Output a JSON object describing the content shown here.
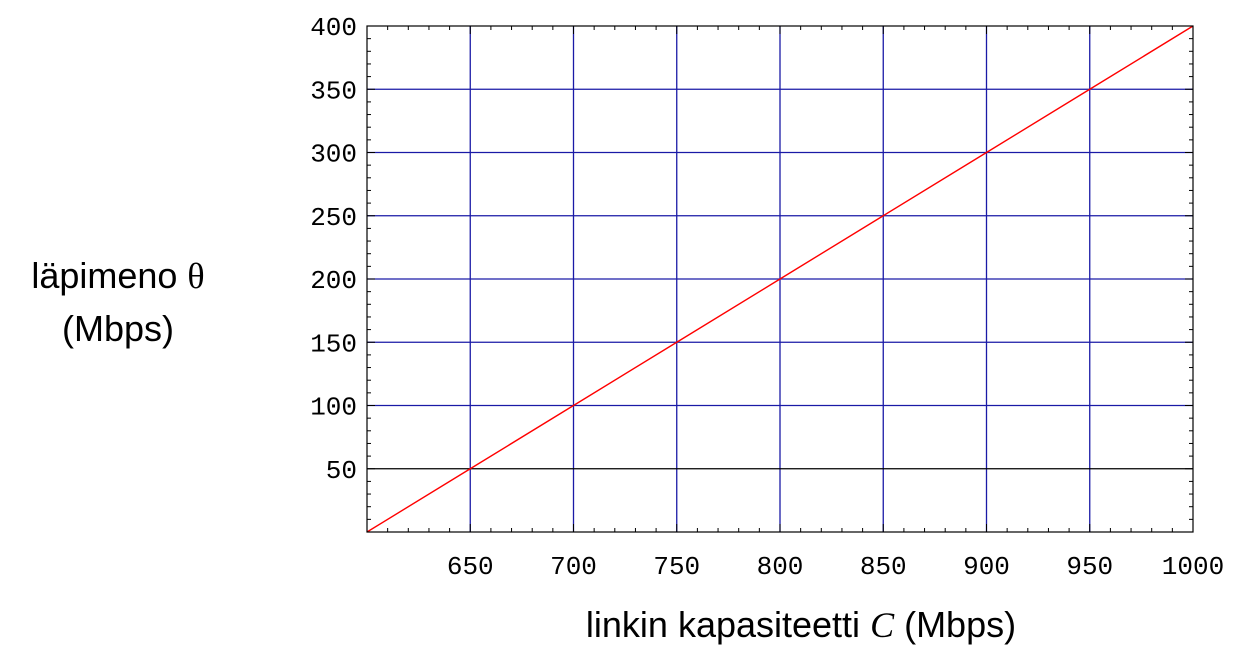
{
  "chart_data": {
    "type": "line",
    "xlabel": {
      "prefix": "linkin kapasiteetti ",
      "symbol": "C",
      "suffix": " (Mbps)"
    },
    "ylabel": {
      "line1_prefix": "läpimeno ",
      "line1_symbol": "θ",
      "line2": "(Mbps)"
    },
    "xlim": [
      600,
      1000
    ],
    "ylim": [
      0,
      400
    ],
    "x_ticks": [
      650,
      700,
      750,
      800,
      850,
      900,
      950,
      1000
    ],
    "x_tick_labels": [
      "650",
      "700",
      "750",
      "800",
      "850",
      "900",
      "950",
      "1000"
    ],
    "y_ticks": [
      50,
      100,
      150,
      200,
      250,
      300,
      350,
      400
    ],
    "y_tick_labels": [
      "50",
      "100",
      "150",
      "200",
      "250",
      "300",
      "350",
      "400"
    ],
    "grid": true,
    "series": [
      {
        "color": "#ff0000",
        "x": [
          600,
          650,
          700,
          750,
          800,
          850,
          900,
          950,
          1000
        ],
        "y": [
          0,
          50,
          100,
          150,
          200,
          250,
          300,
          350,
          400
        ]
      }
    ],
    "colors": {
      "vertical_grid": "#1a1aa6",
      "horizontal_grid": "#1a1aa6",
      "horizontal_grid_lowest": "#000000",
      "frame": "#000000",
      "series_line": "#ff0000"
    }
  }
}
